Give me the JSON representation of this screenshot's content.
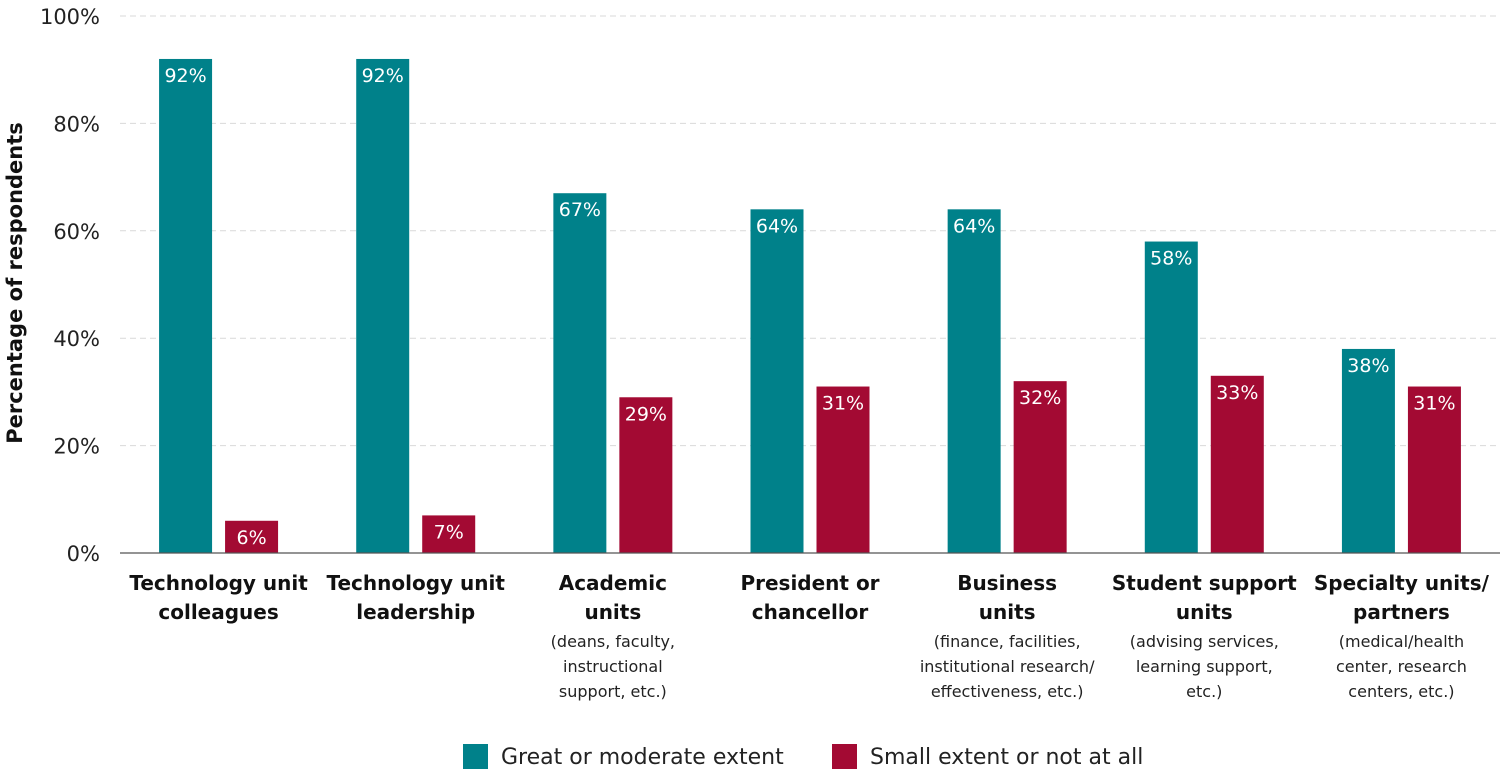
{
  "chart_data": {
    "type": "bar",
    "title": "",
    "xlabel": "",
    "ylabel": "Percentage of respondents",
    "ylim": [
      0,
      100
    ],
    "yticks": [
      0,
      20,
      40,
      60,
      80,
      100
    ],
    "ytick_labels": [
      "0%",
      "20%",
      "40%",
      "60%",
      "80%",
      "100%"
    ],
    "grid": true,
    "legend_position": "bottom",
    "categories": [
      {
        "title": [
          "Technology unit",
          "colleagues"
        ],
        "subtitle": []
      },
      {
        "title": [
          "Technology unit",
          "leadership"
        ],
        "subtitle": []
      },
      {
        "title": [
          "Academic",
          "units"
        ],
        "subtitle": [
          "(deans, faculty,",
          "instructional",
          "support, etc.)"
        ]
      },
      {
        "title": [
          "President or",
          "chancellor"
        ],
        "subtitle": []
      },
      {
        "title": [
          "Business",
          "units"
        ],
        "subtitle": [
          "(finance, facilities,",
          "institutional research/",
          "effectiveness, etc.)"
        ]
      },
      {
        "title": [
          "Student support",
          "units"
        ],
        "subtitle": [
          "(advising services,",
          "learning support,",
          "etc.)"
        ]
      },
      {
        "title": [
          "Specialty units/",
          "partners"
        ],
        "subtitle": [
          "(medical/health",
          "center, research",
          "centers, etc.)"
        ]
      }
    ],
    "series": [
      {
        "name": "Great or moderate extent",
        "color": "#00818A",
        "values": [
          92,
          92,
          67,
          64,
          64,
          58,
          38
        ],
        "labels": [
          "92%",
          "92%",
          "67%",
          "64%",
          "64%",
          "58%",
          "38%"
        ]
      },
      {
        "name": "Small extent or not at all",
        "color": "#A30A33",
        "values": [
          6,
          7,
          29,
          31,
          32,
          33,
          31
        ],
        "labels": [
          "6%",
          "7%",
          "29%",
          "31%",
          "32%",
          "33%",
          "31%"
        ]
      }
    ]
  }
}
